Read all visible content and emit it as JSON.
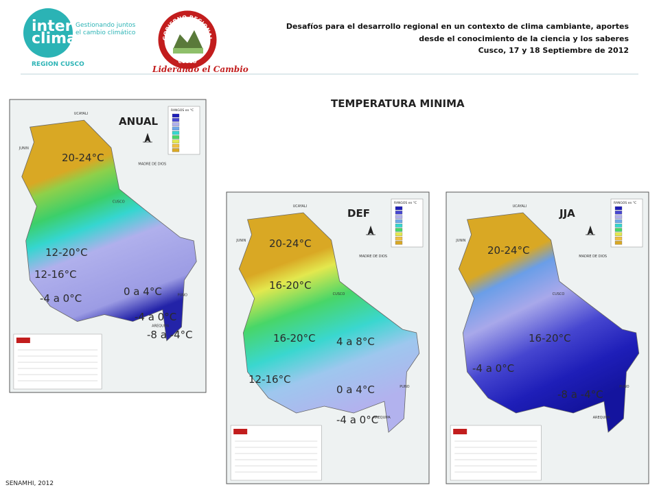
{
  "header": {
    "logo_line1": "inter",
    "logo_line2": "clima",
    "logo_tagline": [
      "Gestionando juntos",
      "el cambio climático"
    ],
    "region": "REGION CUSCO",
    "emblem_ring": "GOBIERNO REGIONAL",
    "emblem_bottom": "CUSCO",
    "motto": "Liderando el Cambio",
    "event_lines": [
      "Desafíos para el desarrollo regional en un contexto de clima cambiante, aportes",
      "desde el conocimiento de la ciencia y los saberes",
      "Cusco, 17 y 18 Septiembre de 2012"
    ]
  },
  "title": "TEMPERATURA MINIMA",
  "place_names": [
    "UCAYALI",
    "JUNIN",
    "MADRE DE DIOS",
    "CUSCO",
    "PUNO",
    "AREQUIPA"
  ],
  "legend_title": "RANGOS en °C",
  "maps": [
    {
      "label": "ANUAL",
      "annotations": [
        "20-24°C",
        "12-20°C",
        "12-16°C",
        "-4 a 0°C",
        "0 a 4°C",
        "-4 a 0°C",
        "-8 a -4°C"
      ]
    },
    {
      "label": "DEF",
      "annotations": [
        "20-24°C",
        "16-20°C",
        "16-20°C",
        "4 a 8°C",
        "12-16°C",
        "0 a 4°C",
        "-4 a 0°C"
      ]
    },
    {
      "label": "JJA",
      "annotations": [
        "20-24°C",
        "16-20°C",
        "-4 a 0°C",
        "-8 a -4°C"
      ]
    }
  ],
  "footer": "SENAMHI, 2012"
}
